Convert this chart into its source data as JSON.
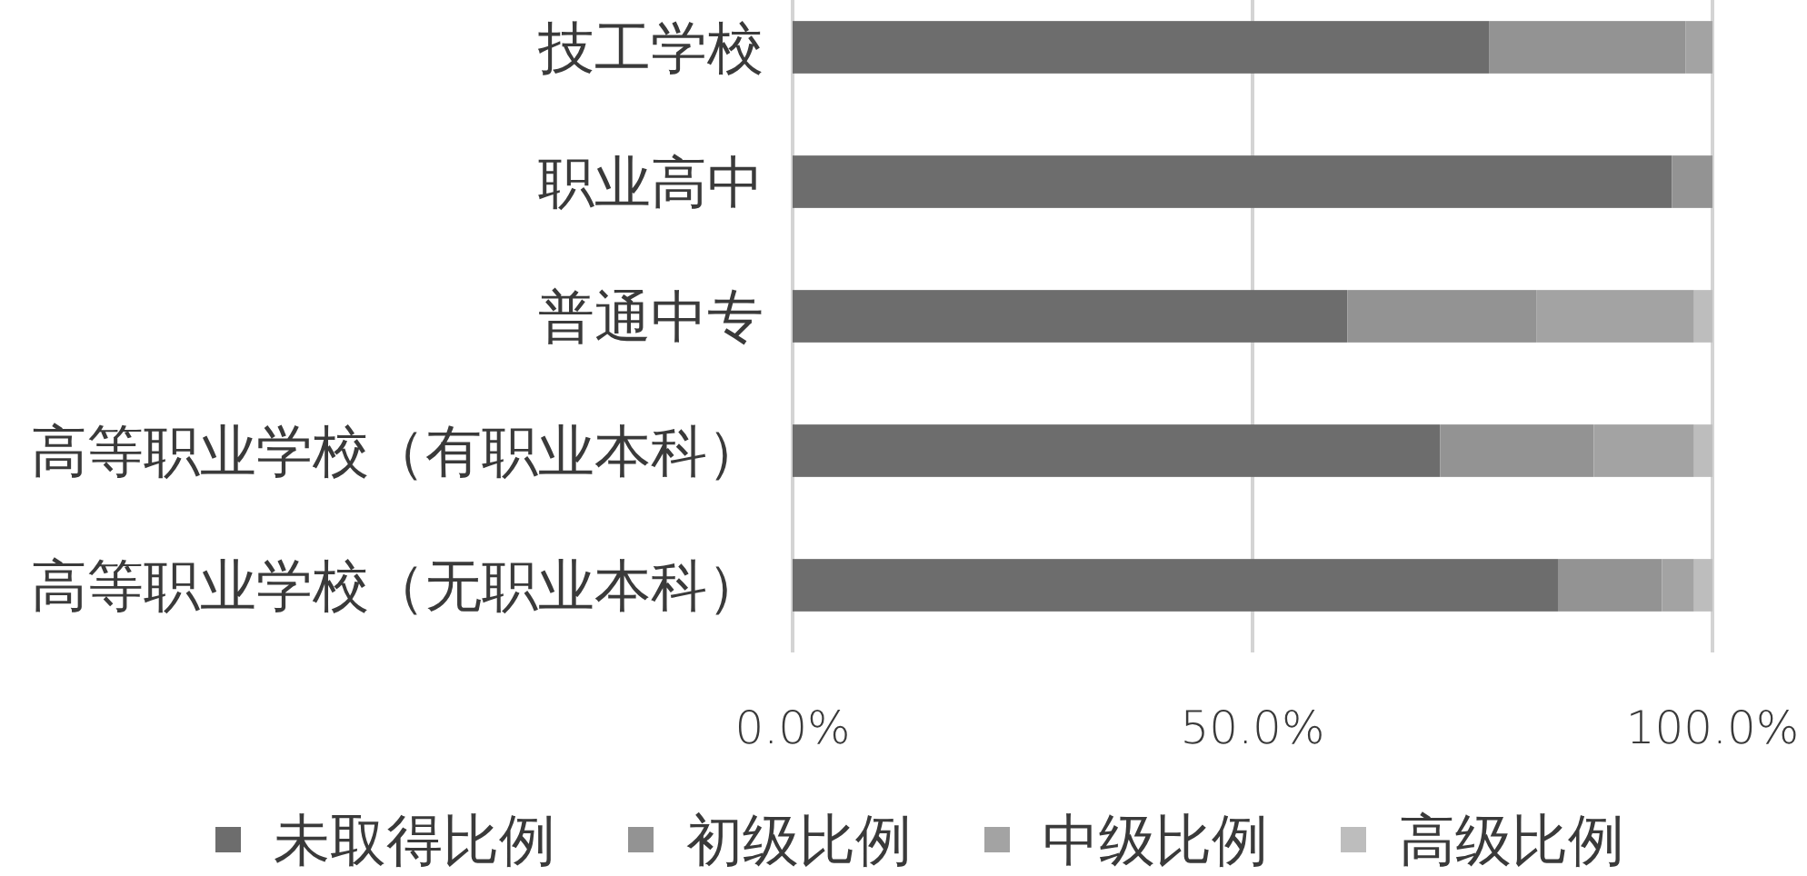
{
  "chart_data": {
    "type": "bar",
    "orientation": "horizontal",
    "stacked": true,
    "categories": [
      "技工学校",
      "职业高中",
      "普通中专",
      "高等职业学校（有职业本科）",
      "高等职业学校（无职业本科）"
    ],
    "series": [
      {
        "name": "未取得比例",
        "color": "#6d6d6d",
        "values": [
          75.7,
          95.6,
          60.3,
          70.4,
          83.2
        ]
      },
      {
        "name": "初级比例",
        "color": "#939393",
        "values": [
          21.4,
          4.4,
          20.6,
          16.7,
          11.3
        ]
      },
      {
        "name": "中级比例",
        "color": "#a3a3a3",
        "values": [
          2.9,
          0,
          17.1,
          10.9,
          3.5
        ]
      },
      {
        "name": "高级比例",
        "color": "#bdbdbd",
        "values": [
          0,
          0,
          2.0,
          2.0,
          2.0
        ]
      }
    ],
    "xlim": [
      0,
      100
    ],
    "xticks": [
      {
        "value": 0,
        "label": "0.0%"
      },
      {
        "value": 50,
        "label": "50.0%"
      },
      {
        "value": 100,
        "label": "100.0%"
      }
    ],
    "grid": "x",
    "legend": "bottom"
  }
}
